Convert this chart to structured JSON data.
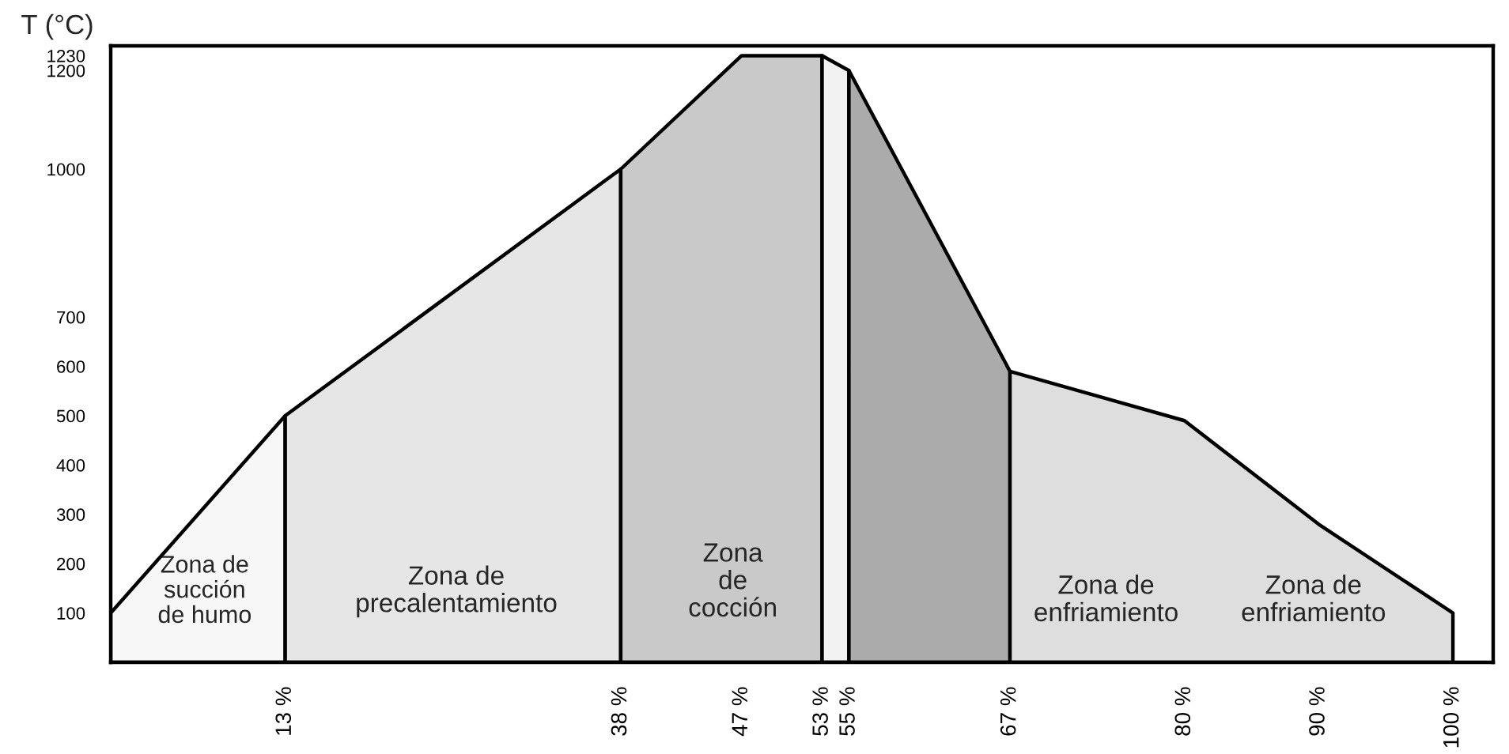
{
  "chart_data": {
    "type": "area",
    "ylabel": "T (°C)",
    "series": [
      {
        "x": [
          0,
          13
        ],
        "values": [
          100,
          500
        ],
        "color": "#f7f7f7"
      },
      {
        "x": [
          13,
          38
        ],
        "values": [
          500,
          1000
        ],
        "color": "#e6e6e6"
      },
      {
        "x": [
          38,
          47,
          53
        ],
        "values": [
          1000,
          1230,
          1230
        ],
        "color": "#c9c9c9"
      },
      {
        "x": [
          53,
          55
        ],
        "values": [
          1230,
          1200
        ],
        "color": "#f2f2f2"
      },
      {
        "x": [
          55,
          67
        ],
        "values": [
          1200,
          590
        ],
        "color": "#ababab"
      },
      {
        "x": [
          67,
          80,
          90,
          100
        ],
        "values": [
          590,
          490,
          280,
          100
        ],
        "color": "#dedede"
      }
    ],
    "annotations": [
      "Zona de\nsucción\nde humo",
      "Zona de\nprecalentamiento",
      "Zona\nde\ncocción",
      "Zona de\nenfriamiento",
      "Zona de\nenfriamiento"
    ],
    "xlim": [
      0,
      103
    ],
    "xticks": [
      {
        "value": 13,
        "label": "13 %"
      },
      {
        "value": 38,
        "label": "38 %"
      },
      {
        "value": 47,
        "label": "47 %"
      },
      {
        "value": 53,
        "label": "53 %"
      },
      {
        "value": 55,
        "label": "55 %"
      },
      {
        "value": 67,
        "label": "67 %"
      },
      {
        "value": 80,
        "label": "80 %"
      },
      {
        "value": 90,
        "label": "90 %"
      },
      {
        "value": 100,
        "label": "100 %"
      }
    ],
    "ylim": [
      0,
      1250
    ],
    "yticks": [
      100,
      200,
      300,
      400,
      500,
      600,
      700,
      1000,
      1200,
      1230
    ],
    "grid": false
  }
}
